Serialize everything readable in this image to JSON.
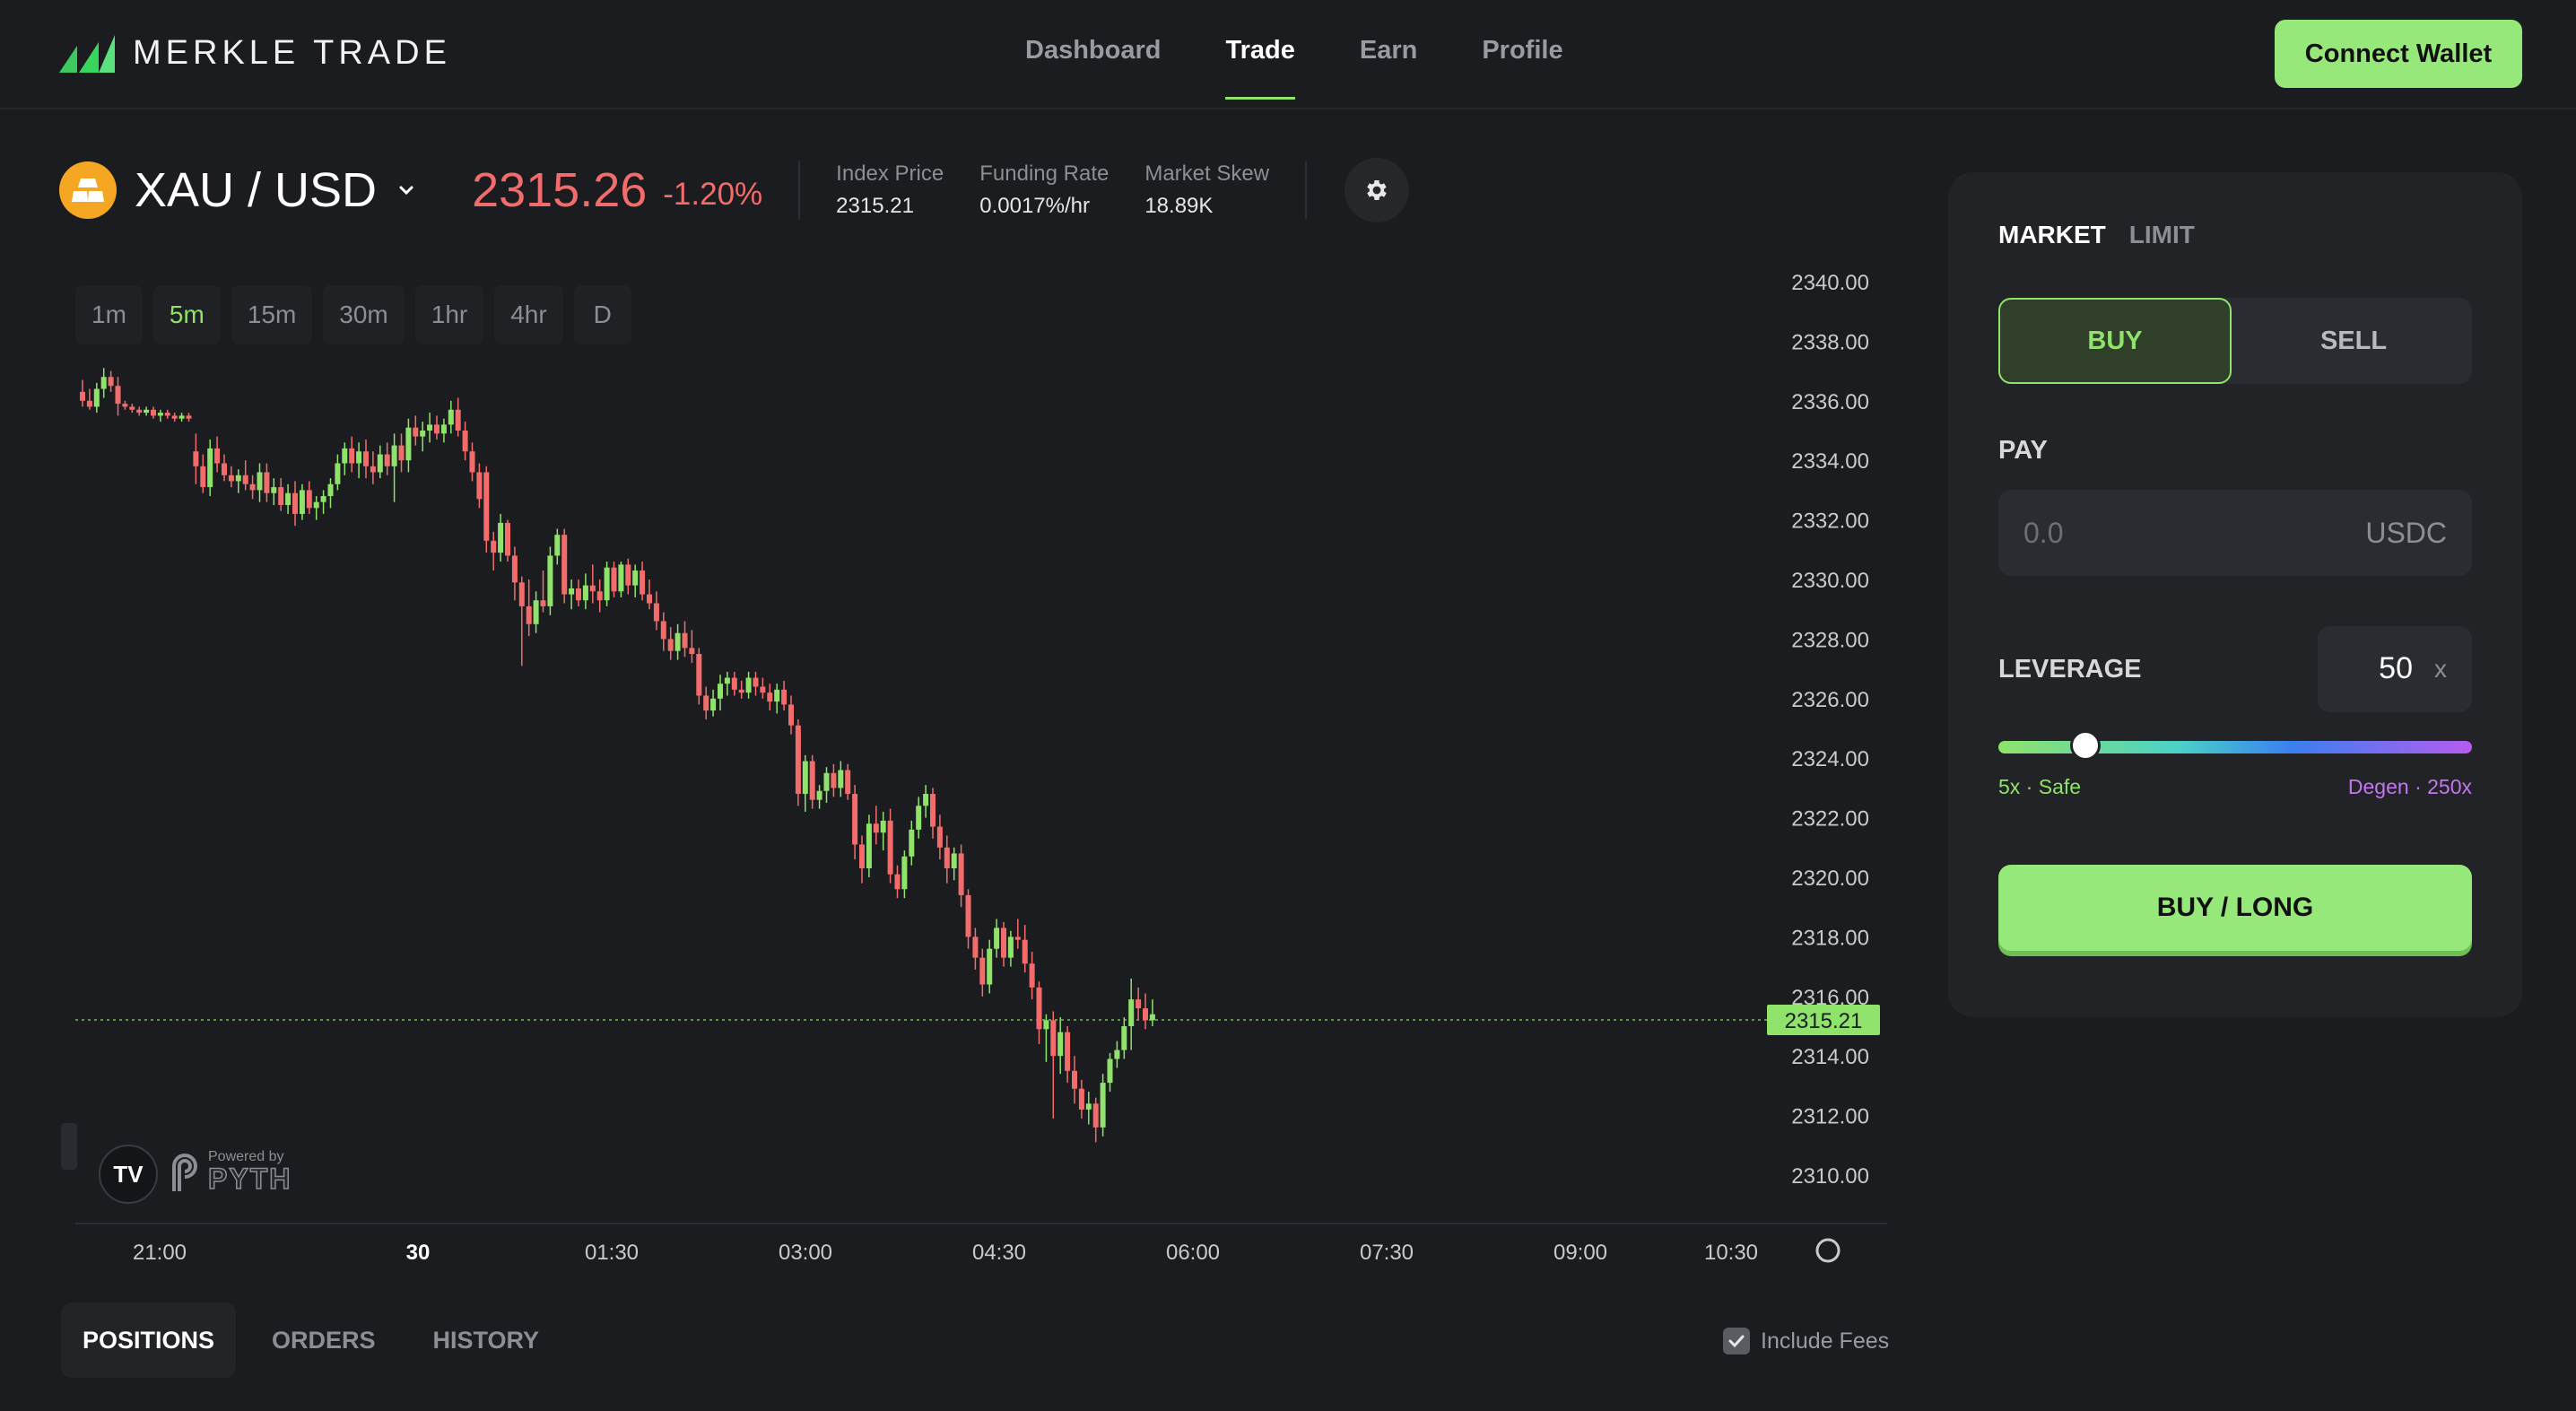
{
  "header": {
    "brand": "MERKLE TRADE",
    "nav": [
      "Dashboard",
      "Trade",
      "Earn",
      "Profile"
    ],
    "active_nav": "Trade",
    "connect_label": "Connect Wallet"
  },
  "ticker": {
    "pair": "XAU / USD",
    "price": "2315.26",
    "change": "-1.20%",
    "index_price_label": "Index Price",
    "index_price": "2315.21",
    "funding_rate_label": "Funding Rate",
    "funding_rate": "0.0017%/hr",
    "market_skew_label": "Market Skew",
    "market_skew": "18.89K"
  },
  "timeframes": [
    "1m",
    "5m",
    "15m",
    "30m",
    "1hr",
    "4hr",
    "D"
  ],
  "active_timeframe": "5m",
  "chart_data": {
    "type": "candlestick",
    "y_ticks": [
      "2340.00",
      "2338.00",
      "2336.00",
      "2334.00",
      "2332.00",
      "2330.00",
      "2328.00",
      "2326.00",
      "2324.00",
      "2322.00",
      "2320.00",
      "2318.00",
      "2316.00",
      "2314.00",
      "2312.00",
      "2310.00"
    ],
    "x_ticks": [
      "21:00",
      "30",
      "01:30",
      "03:00",
      "04:30",
      "06:00",
      "07:30",
      "09:00",
      "10:30"
    ],
    "current_price": "2315.21",
    "colors": {
      "up": "#8fe36b",
      "down": "#f26c6c"
    },
    "candles": [
      {
        "o": 2336.3,
        "h": 2336.7,
        "l": 2335.8,
        "c": 2336.0
      },
      {
        "o": 2336.0,
        "h": 2336.4,
        "l": 2335.7,
        "c": 2335.8
      },
      {
        "o": 2335.8,
        "h": 2336.6,
        "l": 2335.6,
        "c": 2336.4
      },
      {
        "o": 2336.4,
        "h": 2337.1,
        "l": 2336.1,
        "c": 2336.8
      },
      {
        "o": 2336.8,
        "h": 2337.0,
        "l": 2336.3,
        "c": 2336.5
      },
      {
        "o": 2336.5,
        "h": 2336.8,
        "l": 2335.5,
        "c": 2335.9
      },
      {
        "o": 2335.9,
        "h": 2336.0,
        "l": 2335.7,
        "c": 2335.8
      },
      {
        "o": 2335.8,
        "h": 2335.9,
        "l": 2335.6,
        "c": 2335.7
      },
      {
        "o": 2335.7,
        "h": 2335.8,
        "l": 2335.5,
        "c": 2335.6
      },
      {
        "o": 2335.6,
        "h": 2335.8,
        "l": 2335.5,
        "c": 2335.7
      },
      {
        "o": 2335.7,
        "h": 2335.8,
        "l": 2335.4,
        "c": 2335.5
      },
      {
        "o": 2335.5,
        "h": 2335.7,
        "l": 2335.3,
        "c": 2335.6
      },
      {
        "o": 2335.6,
        "h": 2335.7,
        "l": 2335.4,
        "c": 2335.5
      },
      {
        "o": 2335.5,
        "h": 2335.6,
        "l": 2335.3,
        "c": 2335.4
      },
      {
        "o": 2335.4,
        "h": 2335.6,
        "l": 2335.3,
        "c": 2335.5
      },
      {
        "o": 2335.5,
        "h": 2335.6,
        "l": 2335.3,
        "c": 2335.4
      },
      {
        "o": 2334.3,
        "h": 2334.9,
        "l": 2333.2,
        "c": 2333.8
      },
      {
        "o": 2333.8,
        "h": 2334.2,
        "l": 2332.9,
        "c": 2333.1
      },
      {
        "o": 2333.1,
        "h": 2334.7,
        "l": 2332.8,
        "c": 2334.4
      },
      {
        "o": 2334.4,
        "h": 2334.8,
        "l": 2333.6,
        "c": 2333.9
      },
      {
        "o": 2333.9,
        "h": 2334.2,
        "l": 2333.3,
        "c": 2333.5
      },
      {
        "o": 2333.5,
        "h": 2333.8,
        "l": 2333.1,
        "c": 2333.3
      },
      {
        "o": 2333.3,
        "h": 2333.7,
        "l": 2332.9,
        "c": 2333.5
      },
      {
        "o": 2333.5,
        "h": 2334.0,
        "l": 2333.0,
        "c": 2333.2
      },
      {
        "o": 2333.2,
        "h": 2333.5,
        "l": 2332.7,
        "c": 2333.0
      },
      {
        "o": 2333.0,
        "h": 2333.9,
        "l": 2332.6,
        "c": 2333.6
      },
      {
        "o": 2333.6,
        "h": 2333.9,
        "l": 2332.6,
        "c": 2332.9
      },
      {
        "o": 2332.9,
        "h": 2333.4,
        "l": 2332.5,
        "c": 2333.1
      },
      {
        "o": 2333.1,
        "h": 2333.4,
        "l": 2332.3,
        "c": 2332.5
      },
      {
        "o": 2332.5,
        "h": 2333.2,
        "l": 2332.2,
        "c": 2332.9
      },
      {
        "o": 2332.9,
        "h": 2333.3,
        "l": 2331.8,
        "c": 2332.2
      },
      {
        "o": 2332.2,
        "h": 2333.2,
        "l": 2332.0,
        "c": 2333.0
      },
      {
        "o": 2333.0,
        "h": 2333.3,
        "l": 2332.2,
        "c": 2332.4
      },
      {
        "o": 2332.4,
        "h": 2332.8,
        "l": 2332.0,
        "c": 2332.6
      },
      {
        "o": 2332.6,
        "h": 2333.0,
        "l": 2332.2,
        "c": 2332.8
      },
      {
        "o": 2332.8,
        "h": 2333.4,
        "l": 2332.4,
        "c": 2333.2
      },
      {
        "o": 2333.2,
        "h": 2334.2,
        "l": 2333.0,
        "c": 2333.9
      },
      {
        "o": 2333.9,
        "h": 2334.6,
        "l": 2333.5,
        "c": 2334.4
      },
      {
        "o": 2334.4,
        "h": 2334.8,
        "l": 2333.6,
        "c": 2333.9
      },
      {
        "o": 2333.9,
        "h": 2334.6,
        "l": 2333.4,
        "c": 2334.3
      },
      {
        "o": 2334.3,
        "h": 2334.7,
        "l": 2333.4,
        "c": 2333.8
      },
      {
        "o": 2333.8,
        "h": 2334.3,
        "l": 2333.2,
        "c": 2333.6
      },
      {
        "o": 2333.6,
        "h": 2334.5,
        "l": 2333.4,
        "c": 2334.2
      },
      {
        "o": 2334.2,
        "h": 2334.6,
        "l": 2333.5,
        "c": 2333.8
      },
      {
        "o": 2333.8,
        "h": 2334.9,
        "l": 2332.6,
        "c": 2334.5
      },
      {
        "o": 2334.5,
        "h": 2334.9,
        "l": 2333.6,
        "c": 2334.0
      },
      {
        "o": 2334.0,
        "h": 2335.4,
        "l": 2333.6,
        "c": 2335.1
      },
      {
        "o": 2335.1,
        "h": 2335.5,
        "l": 2334.5,
        "c": 2334.8
      },
      {
        "o": 2334.8,
        "h": 2335.3,
        "l": 2334.3,
        "c": 2335.0
      },
      {
        "o": 2335.0,
        "h": 2335.6,
        "l": 2334.6,
        "c": 2335.2
      },
      {
        "o": 2335.2,
        "h": 2335.5,
        "l": 2334.7,
        "c": 2334.9
      },
      {
        "o": 2334.9,
        "h": 2335.4,
        "l": 2334.6,
        "c": 2335.2
      },
      {
        "o": 2335.2,
        "h": 2336.0,
        "l": 2334.9,
        "c": 2335.7
      },
      {
        "o": 2335.7,
        "h": 2336.1,
        "l": 2334.8,
        "c": 2335.0
      },
      {
        "o": 2335.0,
        "h": 2335.3,
        "l": 2334.0,
        "c": 2334.3
      },
      {
        "o": 2334.3,
        "h": 2334.6,
        "l": 2333.3,
        "c": 2333.6
      },
      {
        "o": 2333.6,
        "h": 2333.9,
        "l": 2332.4,
        "c": 2332.7
      },
      {
        "o": 2333.6,
        "h": 2333.8,
        "l": 2330.9,
        "c": 2331.3
      },
      {
        "o": 2331.3,
        "h": 2331.6,
        "l": 2330.3,
        "c": 2330.9
      },
      {
        "o": 2330.9,
        "h": 2332.2,
        "l": 2330.6,
        "c": 2331.9
      },
      {
        "o": 2331.9,
        "h": 2332.0,
        "l": 2330.6,
        "c": 2330.8
      },
      {
        "o": 2330.8,
        "h": 2331.1,
        "l": 2329.3,
        "c": 2329.9
      },
      {
        "o": 2329.9,
        "h": 2330.1,
        "l": 2327.1,
        "c": 2329.1
      },
      {
        "o": 2329.1,
        "h": 2330.0,
        "l": 2328.1,
        "c": 2328.5
      },
      {
        "o": 2328.5,
        "h": 2329.6,
        "l": 2328.2,
        "c": 2329.3
      },
      {
        "o": 2329.3,
        "h": 2330.3,
        "l": 2328.9,
        "c": 2329.1
      },
      {
        "o": 2329.1,
        "h": 2331.1,
        "l": 2328.8,
        "c": 2330.8
      },
      {
        "o": 2330.8,
        "h": 2331.7,
        "l": 2330.5,
        "c": 2331.5
      },
      {
        "o": 2331.5,
        "h": 2331.7,
        "l": 2329.2,
        "c": 2329.5
      },
      {
        "o": 2329.5,
        "h": 2330.0,
        "l": 2329.0,
        "c": 2329.7
      },
      {
        "o": 2329.7,
        "h": 2330.0,
        "l": 2329.1,
        "c": 2329.3
      },
      {
        "o": 2329.3,
        "h": 2330.2,
        "l": 2329.0,
        "c": 2329.8
      },
      {
        "o": 2329.8,
        "h": 2330.5,
        "l": 2329.2,
        "c": 2329.6
      },
      {
        "o": 2329.6,
        "h": 2330.0,
        "l": 2328.9,
        "c": 2329.3
      },
      {
        "o": 2329.3,
        "h": 2330.6,
        "l": 2329.1,
        "c": 2330.4
      },
      {
        "o": 2330.4,
        "h": 2330.6,
        "l": 2329.4,
        "c": 2329.6
      },
      {
        "o": 2329.6,
        "h": 2330.6,
        "l": 2329.4,
        "c": 2330.5
      },
      {
        "o": 2330.5,
        "h": 2330.7,
        "l": 2329.5,
        "c": 2329.8
      },
      {
        "o": 2329.8,
        "h": 2330.5,
        "l": 2329.4,
        "c": 2330.3
      },
      {
        "o": 2330.3,
        "h": 2330.6,
        "l": 2329.3,
        "c": 2329.5
      },
      {
        "o": 2329.5,
        "h": 2330.0,
        "l": 2329.0,
        "c": 2329.2
      },
      {
        "o": 2329.2,
        "h": 2329.6,
        "l": 2328.3,
        "c": 2328.6
      },
      {
        "o": 2328.6,
        "h": 2328.9,
        "l": 2327.6,
        "c": 2328.0
      },
      {
        "o": 2328.0,
        "h": 2328.4,
        "l": 2327.3,
        "c": 2327.6
      },
      {
        "o": 2327.6,
        "h": 2328.5,
        "l": 2327.3,
        "c": 2328.2
      },
      {
        "o": 2328.2,
        "h": 2328.6,
        "l": 2327.4,
        "c": 2327.7
      },
      {
        "o": 2327.7,
        "h": 2328.3,
        "l": 2327.2,
        "c": 2327.5
      },
      {
        "o": 2327.5,
        "h": 2327.7,
        "l": 2325.8,
        "c": 2326.1
      },
      {
        "o": 2326.1,
        "h": 2326.4,
        "l": 2325.3,
        "c": 2325.6
      },
      {
        "o": 2325.6,
        "h": 2326.3,
        "l": 2325.4,
        "c": 2326.0
      },
      {
        "o": 2326.0,
        "h": 2326.8,
        "l": 2325.6,
        "c": 2326.5
      },
      {
        "o": 2326.5,
        "h": 2326.9,
        "l": 2326.1,
        "c": 2326.7
      },
      {
        "o": 2326.7,
        "h": 2326.9,
        "l": 2326.1,
        "c": 2326.3
      },
      {
        "o": 2326.3,
        "h": 2326.6,
        "l": 2326.0,
        "c": 2326.2
      },
      {
        "o": 2326.2,
        "h": 2326.9,
        "l": 2326.0,
        "c": 2326.7
      },
      {
        "o": 2326.7,
        "h": 2326.9,
        "l": 2326.1,
        "c": 2326.4
      },
      {
        "o": 2326.4,
        "h": 2326.7,
        "l": 2326.0,
        "c": 2326.2
      },
      {
        "o": 2326.2,
        "h": 2326.5,
        "l": 2325.6,
        "c": 2325.9
      },
      {
        "o": 2325.9,
        "h": 2326.5,
        "l": 2325.5,
        "c": 2326.3
      },
      {
        "o": 2326.3,
        "h": 2326.6,
        "l": 2325.6,
        "c": 2325.8
      },
      {
        "o": 2325.8,
        "h": 2326.1,
        "l": 2324.8,
        "c": 2325.1
      },
      {
        "o": 2325.1,
        "h": 2325.3,
        "l": 2322.4,
        "c": 2322.8
      },
      {
        "o": 2322.8,
        "h": 2324.1,
        "l": 2322.2,
        "c": 2323.9
      },
      {
        "o": 2323.9,
        "h": 2324.1,
        "l": 2322.3,
        "c": 2322.6
      },
      {
        "o": 2322.6,
        "h": 2323.1,
        "l": 2322.3,
        "c": 2322.9
      },
      {
        "o": 2322.9,
        "h": 2323.7,
        "l": 2322.5,
        "c": 2323.5
      },
      {
        "o": 2323.5,
        "h": 2323.8,
        "l": 2322.7,
        "c": 2323.0
      },
      {
        "o": 2323.0,
        "h": 2323.9,
        "l": 2322.7,
        "c": 2323.6
      },
      {
        "o": 2323.6,
        "h": 2323.8,
        "l": 2322.6,
        "c": 2322.8
      },
      {
        "o": 2322.8,
        "h": 2323.1,
        "l": 2320.6,
        "c": 2321.1
      },
      {
        "o": 2321.1,
        "h": 2321.4,
        "l": 2319.8,
        "c": 2320.3
      },
      {
        "o": 2320.3,
        "h": 2322.1,
        "l": 2320.0,
        "c": 2321.8
      },
      {
        "o": 2321.8,
        "h": 2322.4,
        "l": 2321.1,
        "c": 2321.5
      },
      {
        "o": 2321.5,
        "h": 2322.2,
        "l": 2320.9,
        "c": 2321.9
      },
      {
        "o": 2321.9,
        "h": 2322.3,
        "l": 2319.8,
        "c": 2320.1
      },
      {
        "o": 2320.1,
        "h": 2320.4,
        "l": 2319.3,
        "c": 2319.6
      },
      {
        "o": 2319.6,
        "h": 2320.9,
        "l": 2319.3,
        "c": 2320.7
      },
      {
        "o": 2320.7,
        "h": 2321.9,
        "l": 2320.4,
        "c": 2321.6
      },
      {
        "o": 2321.6,
        "h": 2322.7,
        "l": 2321.3,
        "c": 2322.4
      },
      {
        "o": 2322.4,
        "h": 2323.1,
        "l": 2322.0,
        "c": 2322.8
      },
      {
        "o": 2322.8,
        "h": 2323.0,
        "l": 2321.3,
        "c": 2321.7
      },
      {
        "o": 2321.7,
        "h": 2322.1,
        "l": 2320.6,
        "c": 2321.0
      },
      {
        "o": 2321.0,
        "h": 2321.4,
        "l": 2319.8,
        "c": 2320.3
      },
      {
        "o": 2320.3,
        "h": 2321.0,
        "l": 2319.9,
        "c": 2320.8
      },
      {
        "o": 2320.8,
        "h": 2321.1,
        "l": 2319.0,
        "c": 2319.4
      },
      {
        "o": 2319.4,
        "h": 2319.6,
        "l": 2317.6,
        "c": 2318.0
      },
      {
        "o": 2318.0,
        "h": 2318.3,
        "l": 2316.9,
        "c": 2317.3
      },
      {
        "o": 2317.3,
        "h": 2317.6,
        "l": 2316.0,
        "c": 2316.4
      },
      {
        "o": 2316.4,
        "h": 2317.9,
        "l": 2316.1,
        "c": 2317.6
      },
      {
        "o": 2317.6,
        "h": 2318.6,
        "l": 2317.3,
        "c": 2318.3
      },
      {
        "o": 2318.3,
        "h": 2318.5,
        "l": 2317.0,
        "c": 2317.3
      },
      {
        "o": 2317.3,
        "h": 2318.2,
        "l": 2317.0,
        "c": 2318.0
      },
      {
        "o": 2318.0,
        "h": 2318.6,
        "l": 2317.6,
        "c": 2317.9
      },
      {
        "o": 2317.9,
        "h": 2318.4,
        "l": 2316.8,
        "c": 2317.1
      },
      {
        "o": 2317.1,
        "h": 2317.5,
        "l": 2315.9,
        "c": 2316.3
      },
      {
        "o": 2316.3,
        "h": 2316.5,
        "l": 2314.4,
        "c": 2314.9
      },
      {
        "o": 2314.9,
        "h": 2315.4,
        "l": 2313.8,
        "c": 2315.2
      },
      {
        "o": 2315.2,
        "h": 2315.5,
        "l": 2311.9,
        "c": 2314.0
      },
      {
        "o": 2314.0,
        "h": 2315.3,
        "l": 2313.4,
        "c": 2314.8
      },
      {
        "o": 2314.8,
        "h": 2315.0,
        "l": 2313.1,
        "c": 2313.5
      },
      {
        "o": 2313.5,
        "h": 2314.0,
        "l": 2312.4,
        "c": 2312.9
      },
      {
        "o": 2312.9,
        "h": 2313.2,
        "l": 2311.9,
        "c": 2312.2
      },
      {
        "o": 2312.2,
        "h": 2312.8,
        "l": 2311.7,
        "c": 2312.4
      },
      {
        "o": 2312.4,
        "h": 2312.6,
        "l": 2311.1,
        "c": 2311.6
      },
      {
        "o": 2311.6,
        "h": 2313.4,
        "l": 2311.3,
        "c": 2313.1
      },
      {
        "o": 2313.1,
        "h": 2314.1,
        "l": 2312.8,
        "c": 2313.9
      },
      {
        "o": 2313.9,
        "h": 2314.5,
        "l": 2313.6,
        "c": 2314.2
      },
      {
        "o": 2314.2,
        "h": 2315.3,
        "l": 2313.9,
        "c": 2315.0
      },
      {
        "o": 2315.0,
        "h": 2316.6,
        "l": 2314.2,
        "c": 2315.9
      },
      {
        "o": 2315.9,
        "h": 2316.3,
        "l": 2315.2,
        "c": 2315.6
      },
      {
        "o": 2315.6,
        "h": 2316.1,
        "l": 2314.9,
        "c": 2315.2
      },
      {
        "o": 2315.2,
        "h": 2315.9,
        "l": 2315.0,
        "c": 2315.4
      }
    ]
  },
  "powered_by": "Powered by",
  "pyth": "PYTH",
  "tradingview_mark": "TV",
  "bottom_tabs": [
    "POSITIONS",
    "ORDERS",
    "HISTORY"
  ],
  "active_bottom_tab": "POSITIONS",
  "include_fees": "Include Fees",
  "order_panel": {
    "tabs": [
      "MARKET",
      "LIMIT"
    ],
    "active_tab": "MARKET",
    "buy": "BUY",
    "sell": "SELL",
    "pay_label": "PAY",
    "pay_placeholder": "0.0",
    "pay_unit": "USDC",
    "leverage_label": "LEVERAGE",
    "leverage_value": "50",
    "leverage_unit": "x",
    "leverage_min": 5,
    "leverage_max": 250,
    "slider_left": "5x · Safe",
    "slider_right": "Degen · 250x",
    "cta": "BUY / LONG"
  }
}
